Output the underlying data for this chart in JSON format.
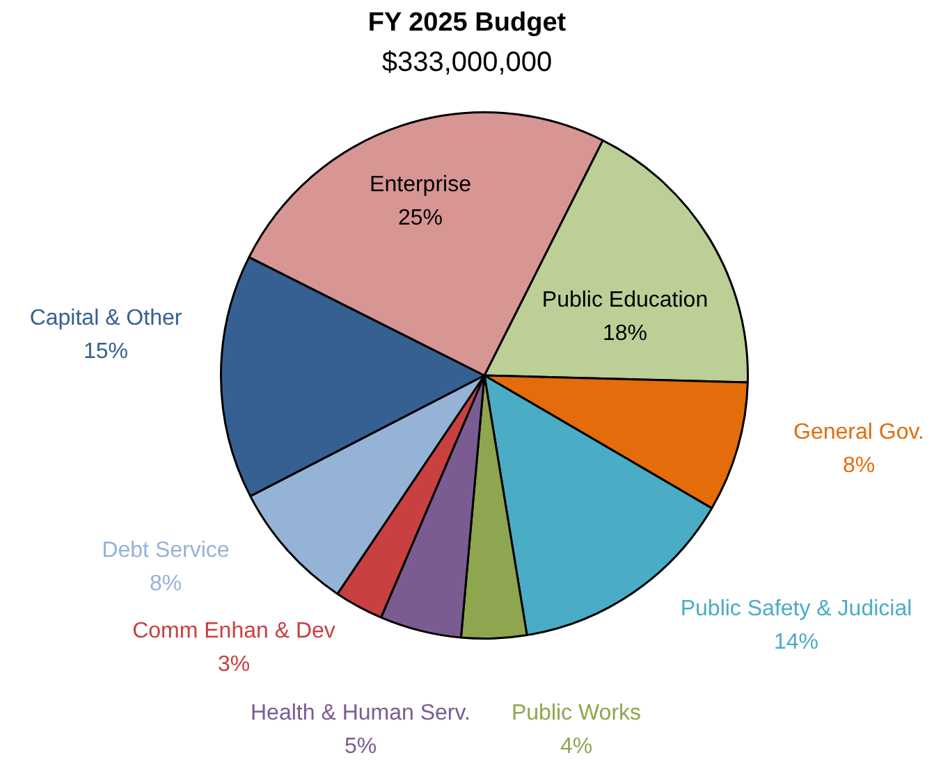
{
  "chart_data": {
    "type": "pie",
    "title": "FY 2025 Budget",
    "subtitle": "$333,000,000",
    "categories": [
      "Public Education",
      "General Gov.",
      "Public Safety & Judicial",
      "Public Works",
      "Health & Human Serv.",
      "Comm Enhan & Dev",
      "Debt Service",
      "Capital & Other",
      "Enterprise"
    ],
    "values": [
      18,
      8,
      14,
      4,
      5,
      3,
      8,
      15,
      25
    ],
    "value_labels": [
      "18%",
      "8%",
      "14%",
      "4%",
      "5%",
      "3%",
      "8%",
      "15%",
      "25%"
    ],
    "colors": [
      "#bccf96",
      "#e46c0a",
      "#4bacc6",
      "#8ea64f",
      "#7a5c92",
      "#c84040",
      "#95b3d7",
      "#376092",
      "#d79593"
    ],
    "legend": false
  }
}
